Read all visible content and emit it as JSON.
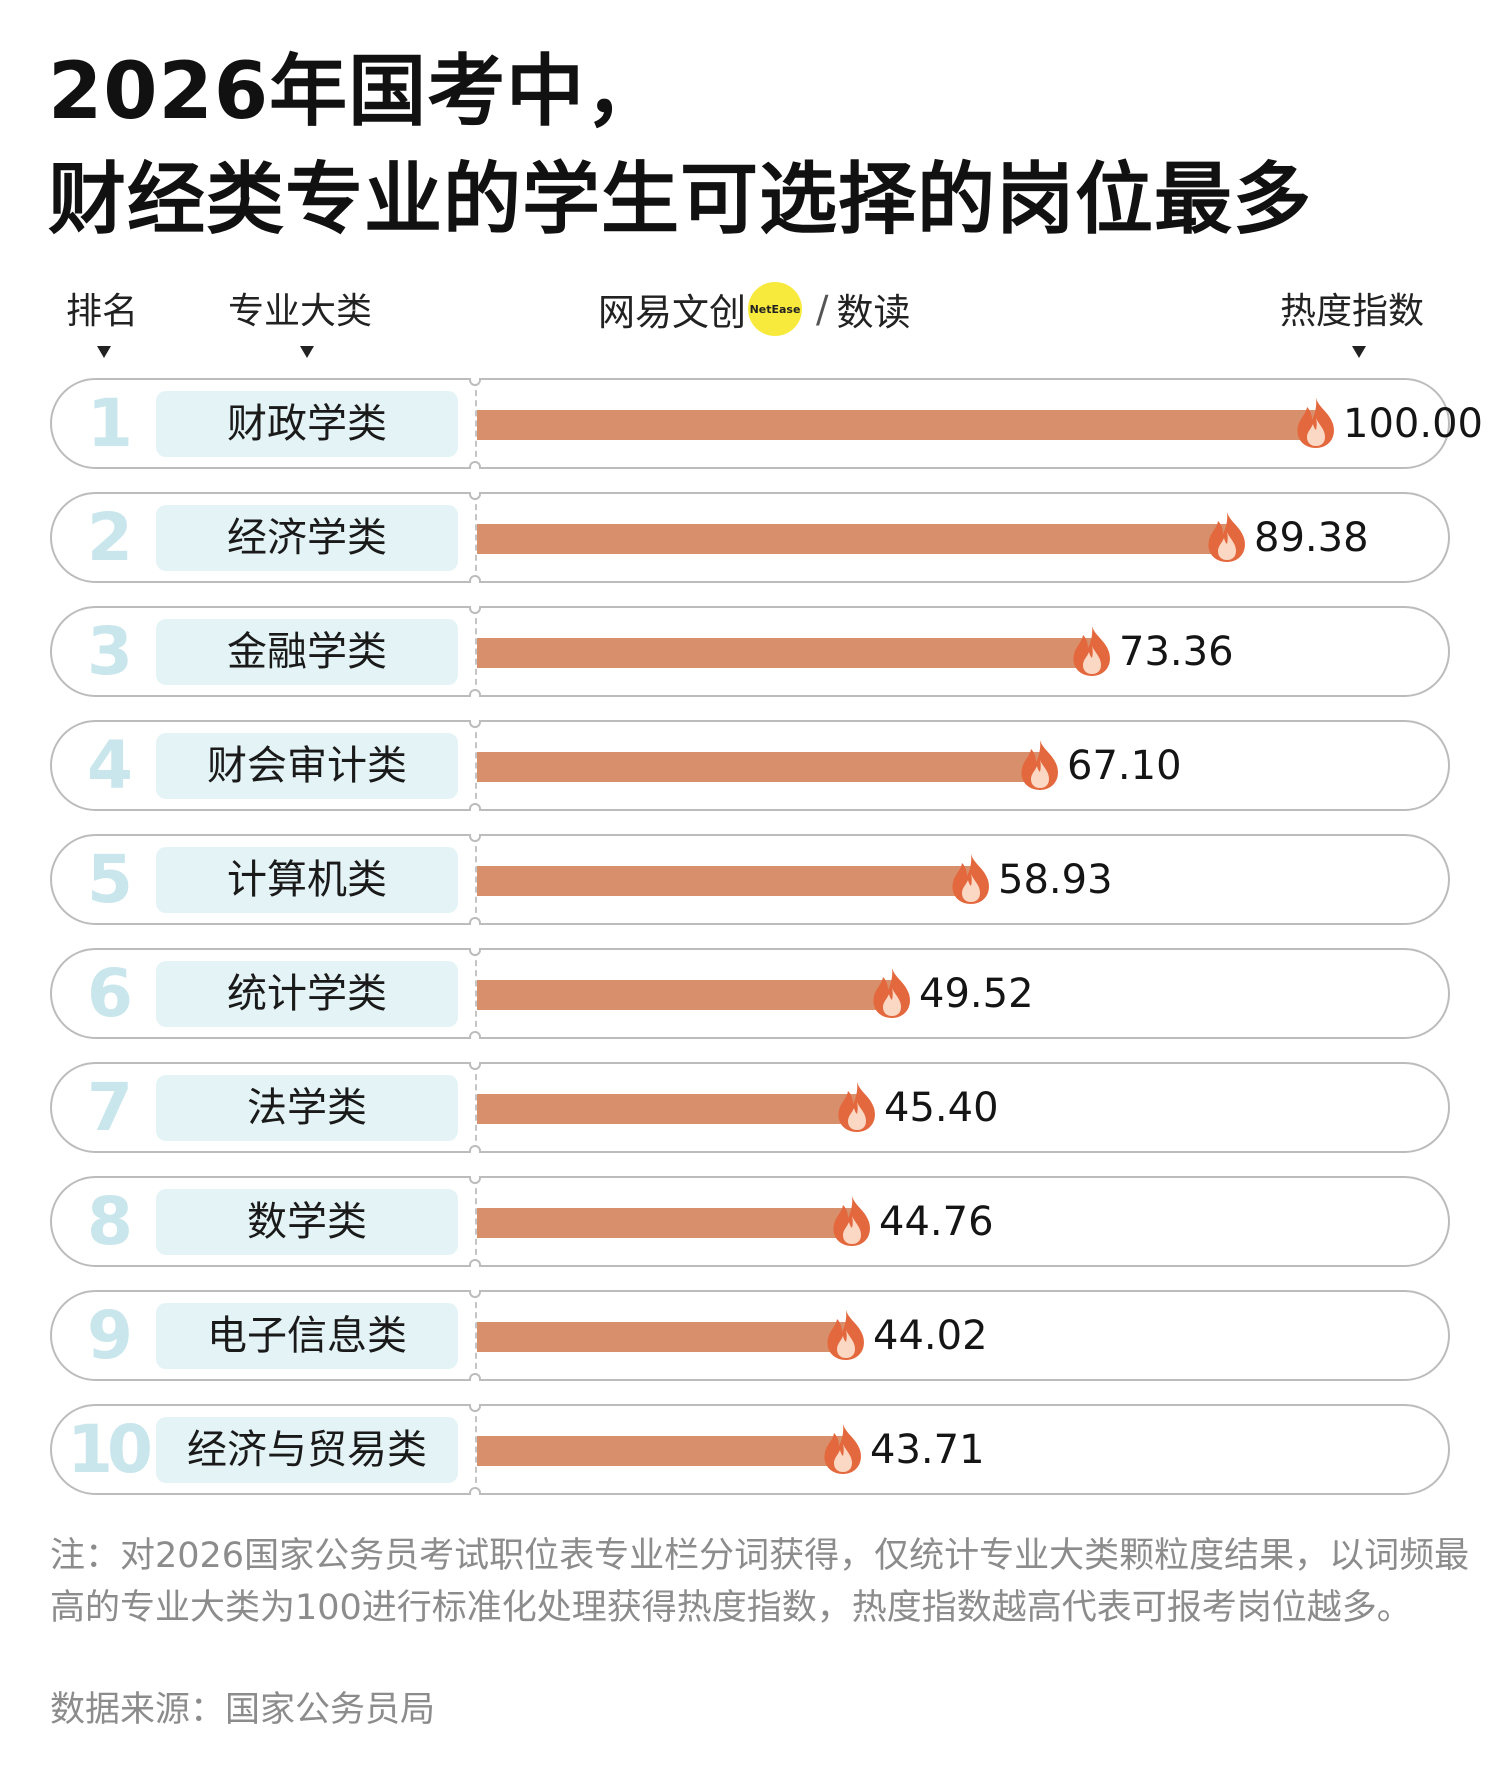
{
  "title": {
    "line1": "2026年国考中，",
    "line2": "财经类专业的学生可选择的岗位最多"
  },
  "headers": {
    "rank": "排名",
    "major": "专业大类",
    "index": "热度指数"
  },
  "brand": {
    "name": "网易文创",
    "badge": "NetEase",
    "sep": "/",
    "sub": "数读"
  },
  "colors": {
    "bar": "#d8906c",
    "rank": "#c9e6ec",
    "pill": "#e4f3f5",
    "flame_outer": "#e4683d",
    "flame_inner": "#fbd8c4"
  },
  "chart_data": {
    "type": "bar",
    "orientation": "horizontal",
    "categories": [
      "财政学类",
      "经济学类",
      "金融学类",
      "财会审计类",
      "计算机类",
      "统计学类",
      "法学类",
      "数学类",
      "电子信息类",
      "经济与贸易类"
    ],
    "ranks": [
      "1",
      "2",
      "3",
      "4",
      "5",
      "6",
      "7",
      "8",
      "9",
      "10"
    ],
    "values": [
      100.0,
      89.38,
      73.36,
      67.1,
      58.93,
      49.52,
      45.4,
      44.76,
      44.02,
      43.71
    ],
    "value_labels": [
      "100.00",
      "89.38",
      "73.36",
      "67.10",
      "58.93",
      "49.52",
      "45.40",
      "44.76",
      "44.02",
      "43.71"
    ],
    "xlim": [
      0,
      100
    ]
  },
  "footer": {
    "note": "注：对2026国家公务员考试职位表专业栏分词获得，仅统计专业大类颗粒度结果，以词频最高的专业大类为100进行标准化处理获得热度指数，热度指数越高代表可报考岗位越多。",
    "source": "数据来源：国家公务员局"
  }
}
